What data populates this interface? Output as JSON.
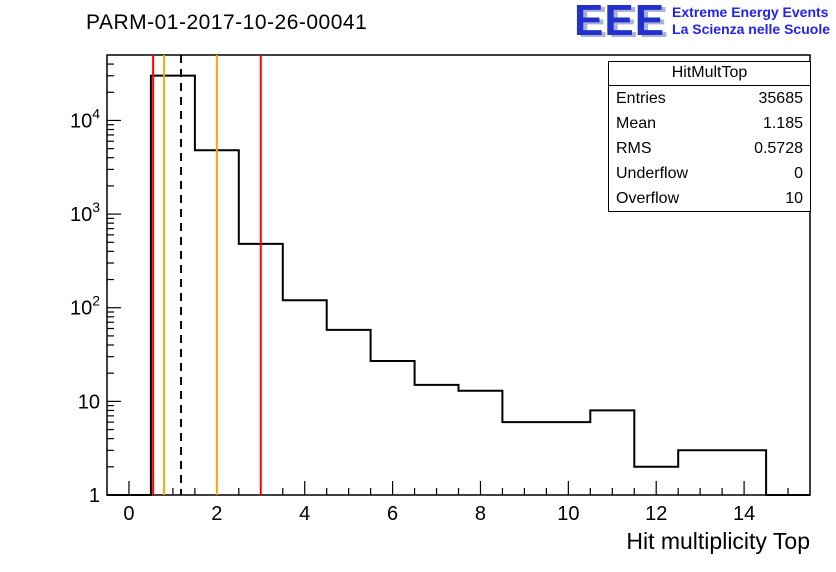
{
  "header": {
    "title": "PARM-01-2017-10-26-00041"
  },
  "logo": {
    "text": "EEE",
    "line1": "Extreme Energy Events",
    "line2": "La Scienza nelle Scuole",
    "color": "#2222ee"
  },
  "stats": {
    "title": "HitMultTop",
    "rows": [
      {
        "label": "Entries",
        "value": "35685"
      },
      {
        "label": "Mean",
        "value": "1.185"
      },
      {
        "label": "RMS",
        "value": "0.5728"
      },
      {
        "label": "Underflow",
        "value": "0"
      },
      {
        "label": "Overflow",
        "value": "10"
      }
    ]
  },
  "chart_data": {
    "type": "bar",
    "title": "PARM-01-2017-10-26-00041",
    "xlabel": "Hit multiplicity Top",
    "ylabel": "",
    "yscale": "log",
    "xlim": [
      -0.5,
      15.5
    ],
    "ylim": [
      1,
      50000
    ],
    "x_ticks": [
      0,
      2,
      4,
      6,
      8,
      10,
      12,
      14
    ],
    "y_ticks": [
      1,
      10,
      100,
      1000,
      10000
    ],
    "grid": false,
    "line_color": "#000000",
    "histogram": {
      "bin_edges": [
        -0.5,
        0.5,
        1.5,
        2.5,
        3.5,
        4.5,
        5.5,
        6.5,
        7.5,
        8.5,
        9.5,
        10.5,
        11.5,
        12.5,
        13.5,
        14.5,
        15.5
      ],
      "counts": [
        0,
        30100,
        4800,
        480,
        120,
        58,
        27,
        15,
        13,
        6,
        6,
        8,
        2,
        3,
        3,
        0
      ]
    },
    "vlines": [
      {
        "x": 0.55,
        "color": "#ff0000",
        "style": "solid"
      },
      {
        "x": 0.8,
        "color": "#ffa500",
        "style": "solid"
      },
      {
        "x": 1.185,
        "color": "#000000",
        "style": "dashed"
      },
      {
        "x": 2.0,
        "color": "#ffa500",
        "style": "solid"
      },
      {
        "x": 3.0,
        "color": "#ff0000",
        "style": "solid"
      }
    ]
  }
}
